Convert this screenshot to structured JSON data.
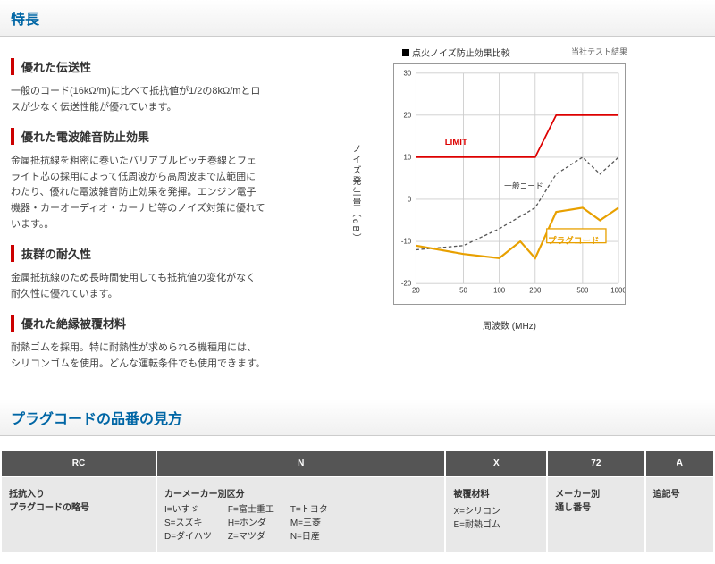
{
  "title1": "特長",
  "sections": [
    {
      "h": "優れた伝送性",
      "p": "一般のコード(16kΩ/m)に比べて抵抗値が1/2の8kΩ/mとロスが少なく伝送性能が優れています。"
    },
    {
      "h": "優れた電波雑音防止効果",
      "p": "金属抵抗線を粗密に巻いたバリアブルピッチ巻線とフェライト芯の採用によって低周波から高周波まで広範囲にわたり、優れた電波雑音防止効果を発揮。エンジン電子機器・カーオーディオ・カーナビ等のノイズ対策に優れています。。"
    },
    {
      "h": "抜群の耐久性",
      "p": "金属抵抗線のため長時間使用しても抵抗値の変化がなく耐久性に優れています。"
    },
    {
      "h": "優れた絶縁被覆材料",
      "p": "耐熱ゴムを採用。特に耐熱性が求められる機種用には、シリコンゴムを使用。どんな運転条件でも使用できます。"
    }
  ],
  "chart": {
    "title": "点火ノイズ防止効果比較",
    "note": "当社テスト結果",
    "ylabel": "ノイズ発生量（dB）",
    "xlabel": "周波数 (MHz)",
    "yticks": [
      -20,
      -10,
      0,
      10,
      20,
      30
    ],
    "xticks": [
      20,
      50,
      100,
      200,
      500,
      1000
    ],
    "ylim": [
      -20,
      30
    ],
    "series": {
      "limit": {
        "label": "LIMIT",
        "color": "#d00",
        "width": 2,
        "data": [
          [
            20,
            10
          ],
          [
            50,
            10
          ],
          [
            100,
            10
          ],
          [
            200,
            10
          ],
          [
            300,
            20
          ],
          [
            500,
            20
          ],
          [
            1000,
            20
          ]
        ]
      },
      "general": {
        "label": "一般コード",
        "color": "#555",
        "width": 1.5,
        "dash": "4,3",
        "data": [
          [
            20,
            -12
          ],
          [
            50,
            -11
          ],
          [
            100,
            -7
          ],
          [
            200,
            -2
          ],
          [
            300,
            6
          ],
          [
            500,
            10
          ],
          [
            700,
            6
          ],
          [
            1000,
            10
          ]
        ]
      },
      "plug": {
        "label": "プラグコード",
        "color": "#e8a000",
        "width": 2.5,
        "data": [
          [
            20,
            -11
          ],
          [
            50,
            -13
          ],
          [
            100,
            -14
          ],
          [
            150,
            -10
          ],
          [
            200,
            -14
          ],
          [
            300,
            -3
          ],
          [
            500,
            -2
          ],
          [
            700,
            -5
          ],
          [
            1000,
            -2
          ]
        ]
      }
    },
    "grid_color": "#ccc"
  },
  "title2": "プラグコードの品番の見方",
  "table": {
    "headers": [
      "RC",
      "N",
      "X",
      "72",
      "A"
    ],
    "cells": [
      {
        "label": "抵抗入り\nプラグコードの略号"
      },
      {
        "label": "カーメーカー別区分",
        "makers": [
          [
            "I=いすゞ",
            "S=スズキ",
            "D=ダイハツ"
          ],
          [
            "F=富士重工",
            "H=ホンダ",
            "Z=マツダ"
          ],
          [
            "T=トヨタ",
            "M=三菱",
            "N=日産"
          ]
        ]
      },
      {
        "label": "被覆材料",
        "sub": [
          "X=シリコン",
          "E=耐熱ゴム"
        ]
      },
      {
        "label": "メーカー別\n通し番号"
      },
      {
        "label": "追記号"
      }
    ]
  }
}
